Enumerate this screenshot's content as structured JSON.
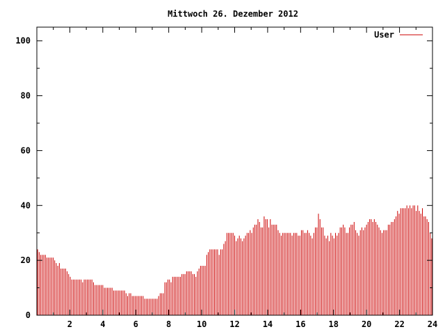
{
  "chart_data": {
    "type": "bar",
    "title": "Mittwoch 26. Dezember 2012",
    "xlabel": "",
    "ylabel": "",
    "xlim": [
      0,
      24
    ],
    "ylim": [
      0,
      105
    ],
    "xticks": [
      "2",
      "4",
      "6",
      "8",
      "10",
      "12",
      "14",
      "16",
      "18",
      "20",
      "22",
      "24"
    ],
    "yticks": [
      "0",
      "20",
      "40",
      "60",
      "80",
      "100"
    ],
    "grid": false,
    "legend": "top-right",
    "series": [
      {
        "name": "User",
        "color": "#cc0000",
        "values": [
          24,
          23,
          22,
          22,
          22,
          22,
          21,
          21,
          21,
          21,
          21,
          20,
          19,
          18,
          19,
          17,
          17,
          17,
          17,
          16,
          15,
          14,
          13,
          13,
          13,
          13,
          13,
          13,
          13,
          12,
          13,
          13,
          13,
          13,
          13,
          13,
          12,
          11,
          11,
          11,
          11,
          11,
          11,
          10,
          10,
          10,
          10,
          10,
          10,
          9,
          9,
          9,
          9,
          9,
          9,
          9,
          9,
          8,
          7,
          8,
          8,
          7,
          7,
          7,
          7,
          7,
          7,
          7,
          7,
          6,
          6,
          6,
          6,
          6,
          6,
          6,
          6,
          6,
          7,
          8,
          8,
          8,
          12,
          12,
          13,
          13,
          12,
          14,
          14,
          14,
          14,
          14,
          14,
          15,
          15,
          15,
          16,
          16,
          16,
          16,
          15,
          15,
          14,
          16,
          17,
          18,
          18,
          18,
          18,
          22,
          23,
          24,
          24,
          24,
          24,
          24,
          24,
          22,
          24,
          24,
          26,
          27,
          30,
          30,
          30,
          30,
          30,
          29,
          27,
          28,
          29,
          28,
          27,
          28,
          29,
          30,
          30,
          31,
          30,
          32,
          33,
          33,
          35,
          34,
          32,
          32,
          36,
          35,
          35,
          32,
          35,
          33,
          33,
          33,
          33,
          31,
          30,
          29,
          30,
          30,
          30,
          30,
          30,
          30,
          29,
          30,
          30,
          30,
          29,
          29,
          31,
          31,
          30,
          30,
          31,
          30,
          29,
          28,
          30,
          32,
          32,
          37,
          35,
          32,
          32,
          29,
          28,
          29,
          27,
          30,
          29,
          28,
          30,
          29,
          30,
          32,
          32,
          33,
          32,
          30,
          30,
          32,
          33,
          33,
          34,
          31,
          30,
          29,
          31,
          32,
          31,
          32,
          33,
          34,
          35,
          35,
          34,
          35,
          34,
          33,
          32,
          31,
          30,
          31,
          31,
          31,
          33,
          33,
          34,
          34,
          35,
          36,
          38,
          37,
          39,
          39,
          39,
          39,
          40,
          39,
          40,
          39,
          40,
          40,
          38,
          40,
          38,
          37,
          39,
          36,
          36,
          35,
          34,
          30,
          28
        ]
      }
    ]
  }
}
